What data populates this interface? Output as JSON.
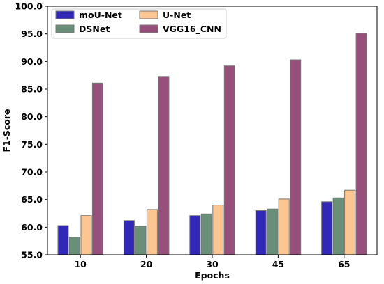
{
  "chart_data": {
    "type": "bar",
    "title": "",
    "xlabel": "Epochs",
    "ylabel": "F1-Score",
    "categories": [
      "10",
      "20",
      "30",
      "45",
      "65"
    ],
    "ylim": [
      55.0,
      100.0
    ],
    "yticks": [
      "55.0",
      "60.0",
      "65.0",
      "70.0",
      "75.0",
      "80.0",
      "85.0",
      "90.0",
      "95.0",
      "100.0"
    ],
    "grid": false,
    "legend_position": "top-left",
    "series": [
      {
        "name": "moU-Net",
        "color": "#3228b8",
        "values": [
          60.3,
          61.2,
          62.1,
          63.0,
          64.6
        ]
      },
      {
        "name": "DSNet",
        "color": "#6a8f79",
        "values": [
          58.2,
          60.2,
          62.4,
          63.3,
          65.3
        ]
      },
      {
        "name": "U-Net",
        "color": "#fcc692",
        "values": [
          62.1,
          63.2,
          64.0,
          65.1,
          66.7
        ]
      },
      {
        "name": "VGG16_CNN",
        "color": "#974f7c",
        "values": [
          86.1,
          87.3,
          89.2,
          90.3,
          95.1
        ]
      }
    ]
  }
}
